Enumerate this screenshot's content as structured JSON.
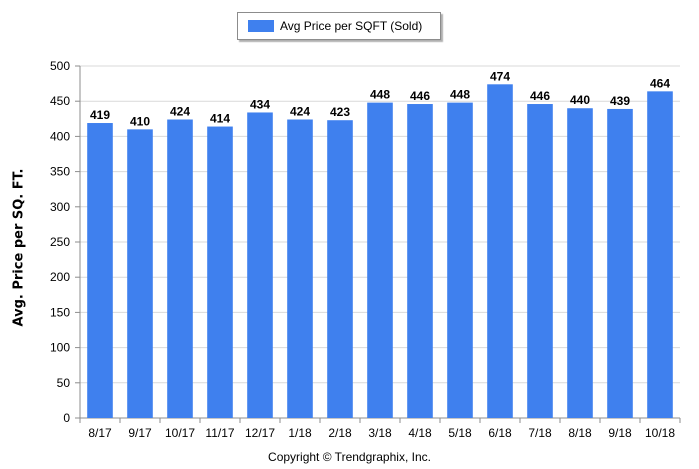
{
  "legend": {
    "label": "Avg Price per SQFT (Sold)"
  },
  "copyright": "Copyright © Trendgraphix, Inc.",
  "colors": {
    "bar": "#3f80ee",
    "grid": "#d9d9d9",
    "axis": "#8c8c8c"
  },
  "chart_data": {
    "type": "bar",
    "title": "",
    "xlabel": "",
    "ylabel": "Avg. Price per SQ. FT.",
    "ylim": [
      0,
      500
    ],
    "yticks": [
      0,
      50,
      100,
      150,
      200,
      250,
      300,
      350,
      400,
      450,
      500
    ],
    "grid": "horizontal",
    "legend_position": "top-center",
    "categories": [
      "8/17",
      "9/17",
      "10/17",
      "11/17",
      "12/17",
      "1/18",
      "2/18",
      "3/18",
      "4/18",
      "5/18",
      "6/18",
      "7/18",
      "8/18",
      "9/18",
      "10/18"
    ],
    "series": [
      {
        "name": "Avg Price per SQFT (Sold)",
        "values": [
          419,
          410,
          424,
          414,
          434,
          424,
          423,
          448,
          446,
          448,
          474,
          446,
          440,
          439,
          464
        ],
        "data_labels": true
      }
    ]
  }
}
